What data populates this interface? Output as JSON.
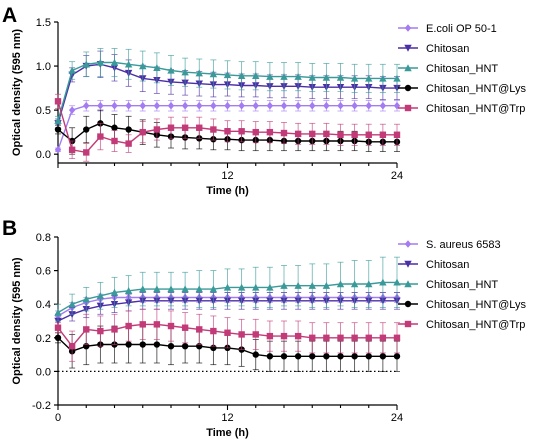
{
  "chart_data": [
    {
      "type": "line",
      "panel_label": "A",
      "title": "",
      "xlabel": "Time (h)",
      "ylabel": "Optical density (595 nm)",
      "xlim": [
        0,
        24
      ],
      "ylim": [
        -0.1,
        1.5
      ],
      "xticks": [
        12,
        24
      ],
      "yticks": [
        "0.0",
        "0.5",
        "1.0",
        "1.5"
      ],
      "legend": "right",
      "x": [
        0,
        1,
        2,
        3,
        4,
        5,
        6,
        7,
        8,
        9,
        10,
        11,
        12,
        13,
        14,
        15,
        16,
        17,
        18,
        19,
        20,
        21,
        22,
        23,
        24
      ],
      "series": [
        {
          "name": "E.coli OP 50-1",
          "color": "#a37bf2",
          "marker": "diamond",
          "values": [
            0.05,
            0.5,
            0.55,
            0.55,
            0.55,
            0.55,
            0.55,
            0.55,
            0.55,
            0.55,
            0.55,
            0.55,
            0.55,
            0.55,
            0.55,
            0.55,
            0.55,
            0.55,
            0.55,
            0.55,
            0.55,
            0.55,
            0.55,
            0.55,
            0.55
          ],
          "errors": [
            0.02,
            0.05,
            0.06,
            0.06,
            0.06,
            0.06,
            0.06,
            0.06,
            0.06,
            0.06,
            0.06,
            0.06,
            0.06,
            0.06,
            0.06,
            0.06,
            0.06,
            0.06,
            0.06,
            0.06,
            0.06,
            0.06,
            0.06,
            0.06,
            0.06
          ]
        },
        {
          "name": "Chitosan",
          "color": "#4b2fa6",
          "marker": "triangle-down",
          "values": [
            0.35,
            0.9,
            1.0,
            1.02,
            0.98,
            0.92,
            0.86,
            0.84,
            0.82,
            0.81,
            0.8,
            0.79,
            0.79,
            0.78,
            0.78,
            0.77,
            0.77,
            0.77,
            0.76,
            0.76,
            0.76,
            0.76,
            0.76,
            0.75,
            0.75
          ],
          "errors": [
            0.05,
            0.08,
            0.12,
            0.15,
            0.15,
            0.15,
            0.15,
            0.15,
            0.14,
            0.14,
            0.14,
            0.14,
            0.13,
            0.13,
            0.13,
            0.13,
            0.13,
            0.13,
            0.13,
            0.13,
            0.13,
            0.13,
            0.13,
            0.13,
            0.13
          ]
        },
        {
          "name": "Chitosan_HNT",
          "color": "#3a9a9a",
          "marker": "triangle-up",
          "values": [
            0.38,
            0.95,
            1.02,
            1.04,
            1.04,
            1.02,
            1.0,
            0.98,
            0.95,
            0.93,
            0.92,
            0.91,
            0.9,
            0.89,
            0.89,
            0.88,
            0.88,
            0.88,
            0.87,
            0.87,
            0.87,
            0.86,
            0.86,
            0.86,
            0.86
          ],
          "errors": [
            0.05,
            0.1,
            0.14,
            0.16,
            0.16,
            0.17,
            0.17,
            0.17,
            0.17,
            0.16,
            0.16,
            0.16,
            0.16,
            0.16,
            0.16,
            0.16,
            0.16,
            0.16,
            0.16,
            0.16,
            0.16,
            0.16,
            0.16,
            0.16,
            0.16
          ]
        },
        {
          "name": "Chitosan_HNT@Lys",
          "color": "#000000",
          "marker": "circle",
          "values": [
            0.28,
            0.15,
            0.28,
            0.35,
            0.3,
            0.28,
            0.25,
            0.22,
            0.2,
            0.19,
            0.18,
            0.17,
            0.17,
            0.16,
            0.16,
            0.16,
            0.15,
            0.15,
            0.15,
            0.15,
            0.15,
            0.15,
            0.14,
            0.14,
            0.14
          ],
          "errors": [
            0.05,
            0.15,
            0.15,
            0.15,
            0.15,
            0.15,
            0.14,
            0.14,
            0.13,
            0.13,
            0.12,
            0.12,
            0.12,
            0.12,
            0.12,
            0.12,
            0.11,
            0.11,
            0.11,
            0.11,
            0.11,
            0.11,
            0.11,
            0.11,
            0.11
          ]
        },
        {
          "name": "Chitosan_HNT@Trp",
          "color": "#c23b78",
          "marker": "square",
          "values": [
            0.6,
            0.05,
            0.02,
            0.2,
            0.15,
            0.12,
            0.25,
            0.28,
            0.3,
            0.3,
            0.3,
            0.28,
            0.26,
            0.26,
            0.25,
            0.25,
            0.24,
            0.23,
            0.23,
            0.23,
            0.22,
            0.22,
            0.22,
            0.22,
            0.22
          ],
          "errors": [
            0.08,
            0.1,
            0.1,
            0.15,
            0.12,
            0.1,
            0.12,
            0.12,
            0.12,
            0.12,
            0.12,
            0.12,
            0.12,
            0.12,
            0.12,
            0.12,
            0.12,
            0.12,
            0.12,
            0.12,
            0.12,
            0.12,
            0.12,
            0.12,
            0.12
          ]
        }
      ]
    },
    {
      "type": "line",
      "panel_label": "B",
      "title": "",
      "xlabel": "Time (h)",
      "ylabel": "Optical density (595 nm)",
      "xlim": [
        0,
        24
      ],
      "ylim": [
        -0.2,
        0.8
      ],
      "xticks": [
        0,
        12,
        24
      ],
      "yticks": [
        "-0.2",
        "0.0",
        "0.2",
        "0.4",
        "0.6",
        "0.8"
      ],
      "reference_line": 0,
      "legend": "right",
      "x": [
        0,
        1,
        2,
        3,
        4,
        5,
        6,
        7,
        8,
        9,
        10,
        11,
        12,
        13,
        14,
        15,
        16,
        17,
        18,
        19,
        20,
        21,
        22,
        23,
        24
      ],
      "series": [
        {
          "name": "S. aureus 6583",
          "color": "#a37bf2",
          "marker": "diamond",
          "values": [
            0.33,
            0.38,
            0.41,
            0.43,
            0.44,
            0.44,
            0.44,
            0.44,
            0.44,
            0.44,
            0.44,
            0.44,
            0.44,
            0.44,
            0.44,
            0.44,
            0.44,
            0.44,
            0.44,
            0.44,
            0.44,
            0.44,
            0.44,
            0.44,
            0.44
          ],
          "errors": [
            0.03,
            0.03,
            0.03,
            0.03,
            0.03,
            0.03,
            0.03,
            0.03,
            0.03,
            0.03,
            0.03,
            0.03,
            0.03,
            0.03,
            0.03,
            0.03,
            0.03,
            0.03,
            0.03,
            0.03,
            0.03,
            0.03,
            0.03,
            0.03,
            0.03
          ]
        },
        {
          "name": "Chitosan",
          "color": "#4b2fa6",
          "marker": "triangle-down",
          "values": [
            0.3,
            0.34,
            0.37,
            0.39,
            0.4,
            0.41,
            0.42,
            0.42,
            0.42,
            0.42,
            0.42,
            0.42,
            0.42,
            0.42,
            0.42,
            0.42,
            0.42,
            0.42,
            0.42,
            0.42,
            0.42,
            0.42,
            0.42,
            0.42,
            0.42
          ],
          "errors": [
            0.04,
            0.04,
            0.05,
            0.05,
            0.05,
            0.05,
            0.05,
            0.05,
            0.05,
            0.05,
            0.05,
            0.05,
            0.05,
            0.05,
            0.05,
            0.05,
            0.05,
            0.05,
            0.05,
            0.05,
            0.05,
            0.05,
            0.05,
            0.05,
            0.05
          ]
        },
        {
          "name": "Chitosan_HNT",
          "color": "#3a9a9a",
          "marker": "triangle-up",
          "values": [
            0.35,
            0.4,
            0.43,
            0.45,
            0.47,
            0.48,
            0.49,
            0.49,
            0.49,
            0.49,
            0.49,
            0.49,
            0.5,
            0.5,
            0.5,
            0.5,
            0.51,
            0.51,
            0.51,
            0.51,
            0.52,
            0.52,
            0.52,
            0.53,
            0.53
          ],
          "errors": [
            0.05,
            0.06,
            0.07,
            0.08,
            0.09,
            0.09,
            0.1,
            0.1,
            0.1,
            0.1,
            0.11,
            0.11,
            0.11,
            0.11,
            0.12,
            0.12,
            0.12,
            0.12,
            0.13,
            0.13,
            0.13,
            0.14,
            0.14,
            0.15,
            0.15
          ]
        },
        {
          "name": "Chitosan_HNT@Lys",
          "color": "#000000",
          "marker": "circle",
          "values": [
            0.2,
            0.12,
            0.15,
            0.16,
            0.16,
            0.16,
            0.16,
            0.16,
            0.15,
            0.15,
            0.15,
            0.14,
            0.14,
            0.13,
            0.1,
            0.09,
            0.09,
            0.09,
            0.09,
            0.09,
            0.09,
            0.09,
            0.09,
            0.09,
            0.09
          ],
          "errors": [
            0.03,
            0.1,
            0.11,
            0.11,
            0.11,
            0.11,
            0.11,
            0.11,
            0.11,
            0.1,
            0.1,
            0.1,
            0.1,
            0.1,
            0.09,
            0.09,
            0.09,
            0.09,
            0.09,
            0.09,
            0.09,
            0.09,
            0.09,
            0.09,
            0.09
          ]
        },
        {
          "name": "Chitosan_HNT@Trp",
          "color": "#c23b78",
          "marker": "square",
          "values": [
            0.26,
            0.15,
            0.25,
            0.24,
            0.25,
            0.27,
            0.28,
            0.28,
            0.27,
            0.26,
            0.25,
            0.24,
            0.23,
            0.22,
            0.22,
            0.21,
            0.21,
            0.21,
            0.2,
            0.2,
            0.2,
            0.2,
            0.2,
            0.2,
            0.2
          ],
          "errors": [
            0.03,
            0.09,
            0.09,
            0.09,
            0.09,
            0.09,
            0.09,
            0.09,
            0.09,
            0.09,
            0.09,
            0.09,
            0.09,
            0.09,
            0.09,
            0.09,
            0.09,
            0.09,
            0.09,
            0.09,
            0.09,
            0.09,
            0.09,
            0.09,
            0.09
          ]
        }
      ]
    }
  ]
}
